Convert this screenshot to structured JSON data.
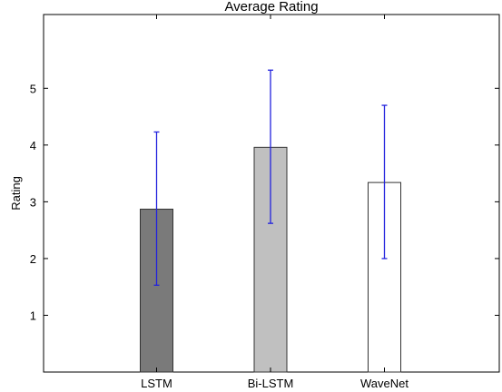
{
  "chart_data": {
    "type": "bar",
    "title": "Average Rating",
    "xlabel": "",
    "ylabel": "Rating",
    "categories": [
      "LSTM",
      "Bi-LSTM",
      "WaveNet"
    ],
    "values": [
      2.87,
      3.96,
      3.34
    ],
    "error_low": [
      1.53,
      2.62,
      2.0
    ],
    "error_high": [
      4.23,
      5.32,
      4.7
    ],
    "ylim": [
      0,
      6.3
    ],
    "yticks": [
      1,
      2,
      3,
      4,
      5
    ],
    "bar_colors": [
      "#7a7a7a",
      "#c0c0c0",
      "#ffffff"
    ],
    "bar_edge_color": "#333333",
    "error_color": "#2222dd",
    "grid": false,
    "legend": "none"
  }
}
